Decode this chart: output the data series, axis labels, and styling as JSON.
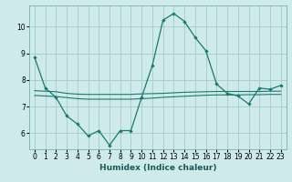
{
  "title": "",
  "xlabel": "Humidex (Indice chaleur)",
  "ylabel": "",
  "background_color": "#ceeaea",
  "line_color": "#1a7a6e",
  "grid_color": "#aacece",
  "xlim": [
    -0.5,
    23.5
  ],
  "ylim": [
    5.4,
    10.8
  ],
  "xticks": [
    0,
    1,
    2,
    3,
    4,
    5,
    6,
    7,
    8,
    9,
    10,
    11,
    12,
    13,
    14,
    15,
    16,
    17,
    18,
    19,
    20,
    21,
    22,
    23
  ],
  "yticks": [
    6,
    7,
    8,
    9,
    10
  ],
  "curve1_x": [
    0,
    1,
    2,
    3,
    4,
    5,
    6,
    7,
    8,
    9,
    10,
    11,
    12,
    13,
    14,
    15,
    16,
    17,
    18,
    19,
    20,
    21,
    22,
    23
  ],
  "curve1_y": [
    8.85,
    7.7,
    7.35,
    6.65,
    6.35,
    5.9,
    6.1,
    5.55,
    6.1,
    6.1,
    7.35,
    8.55,
    10.25,
    10.5,
    10.2,
    9.6,
    9.1,
    7.85,
    7.5,
    7.4,
    7.1,
    7.7,
    7.65,
    7.8
  ],
  "curve2_x": [
    0,
    1,
    2,
    3,
    4,
    5,
    6,
    7,
    8,
    9,
    10,
    11,
    12,
    13,
    14,
    15,
    16,
    17,
    18,
    19,
    20,
    21,
    22,
    23
  ],
  "curve2_y": [
    7.6,
    7.58,
    7.56,
    7.5,
    7.47,
    7.46,
    7.46,
    7.46,
    7.46,
    7.46,
    7.48,
    7.49,
    7.5,
    7.52,
    7.54,
    7.55,
    7.56,
    7.57,
    7.57,
    7.57,
    7.57,
    7.57,
    7.58,
    7.58
  ],
  "curve3_x": [
    0,
    1,
    2,
    3,
    4,
    5,
    6,
    7,
    8,
    9,
    10,
    11,
    12,
    13,
    14,
    15,
    16,
    17,
    18,
    19,
    20,
    21,
    22,
    23
  ],
  "curve3_y": [
    7.42,
    7.4,
    7.38,
    7.34,
    7.3,
    7.28,
    7.28,
    7.28,
    7.28,
    7.28,
    7.3,
    7.32,
    7.35,
    7.37,
    7.39,
    7.41,
    7.43,
    7.44,
    7.44,
    7.44,
    7.45,
    7.45,
    7.46,
    7.46
  ],
  "tick_fontsize": 5.5,
  "xlabel_fontsize": 6.5
}
